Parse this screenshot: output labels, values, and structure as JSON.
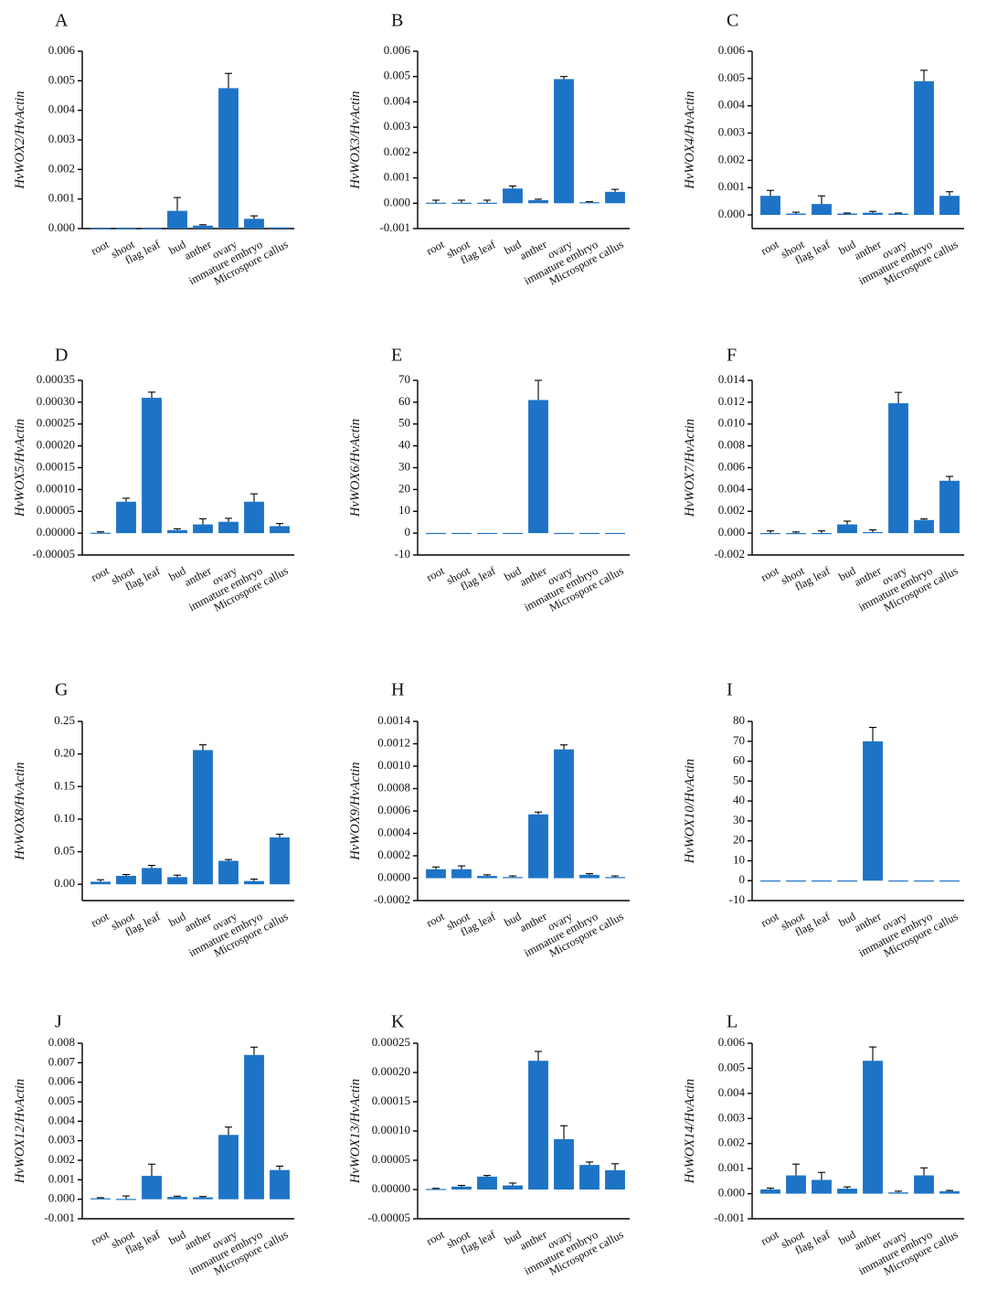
{
  "figure": {
    "categories": [
      "root",
      "shoot",
      "flag leaf",
      "bud",
      "anther",
      "ovary",
      "immature embryo",
      "Microspore callus"
    ],
    "bar_color": "#1d74c6"
  },
  "chart_data": [
    {
      "panel": "A",
      "type": "bar",
      "ylabel": "HvWOX2/HvActin",
      "ylim": [
        0,
        0.006
      ],
      "yticks": [
        "0.000",
        "0.001",
        "0.002",
        "0.003",
        "0.004",
        "0.005",
        "0.006"
      ],
      "categories": [
        "root",
        "shoot",
        "flag leaf",
        "bud",
        "anther",
        "ovary",
        "immature embryo",
        "Microspore callus"
      ],
      "values": [
        1e-05,
        1e-05,
        1e-05,
        0.0006,
        0.0001,
        0.00475,
        0.00033,
        4e-05
      ],
      "errors": [
        0,
        0,
        0,
        0.00045,
        3e-05,
        0.0005,
        0.0001,
        0
      ]
    },
    {
      "panel": "B",
      "type": "bar",
      "ylabel": "HvWOX3/HvActin",
      "ylim": [
        -0.001,
        0.006
      ],
      "yticks": [
        "-0.001",
        "0.000",
        "0.001",
        "0.002",
        "0.003",
        "0.004",
        "0.005",
        "0.006"
      ],
      "categories": [
        "root",
        "shoot",
        "flag leaf",
        "bud",
        "anther",
        "ovary",
        "immature embryo",
        "Microspore callus"
      ],
      "values": [
        2e-05,
        2e-05,
        2e-05,
        0.00058,
        0.00012,
        0.0049,
        4e-05,
        0.00045
      ],
      "errors": [
        0.0001,
        0.0001,
        0.0001,
        0.0001,
        4e-05,
        0.0001,
        2e-05,
        0.0001
      ]
    },
    {
      "panel": "C",
      "type": "bar",
      "ylabel": "HvWOX4/HvActin",
      "ylim": [
        -0.0005,
        0.006
      ],
      "yticks": [
        "0.000",
        "0.001",
        "0.002",
        "0.003",
        "0.004",
        "0.005",
        "0.006"
      ],
      "categories": [
        "root",
        "shoot",
        "flag leaf",
        "bud",
        "anther",
        "ovary",
        "immature embryo",
        "Microspore callus"
      ],
      "values": [
        0.0007,
        5e-05,
        0.0004,
        5e-05,
        8e-05,
        5e-05,
        0.0049,
        0.0007
      ],
      "errors": [
        0.0002,
        5e-05,
        0.0003,
        2e-05,
        5e-05,
        2e-05,
        0.0004,
        0.00015
      ]
    },
    {
      "panel": "D",
      "type": "bar",
      "ylabel": "HvWOX5/HvActin",
      "ylim": [
        -5e-05,
        0.00035
      ],
      "yticks": [
        "-0.00005",
        "0.00000",
        "0.00005",
        "0.00010",
        "0.00015",
        "0.00020",
        "0.00025",
        "0.00030",
        "0.00035"
      ],
      "categories": [
        "root",
        "shoot",
        "flag leaf",
        "bud",
        "anther",
        "ovary",
        "immature embryo",
        "Microspore callus"
      ],
      "values": [
        1e-06,
        7.2e-05,
        0.00031,
        7e-06,
        2e-05,
        2.6e-05,
        7.2e-05,
        1.6e-05
      ],
      "errors": [
        2e-06,
        8e-06,
        1.3e-05,
        3e-06,
        1.3e-05,
        8e-06,
        1.8e-05,
        6e-06
      ]
    },
    {
      "panel": "E",
      "type": "bar",
      "ylabel": "HvWOX6/HvActin",
      "ylim": [
        -10,
        70
      ],
      "yticks": [
        "-10",
        "0",
        "10",
        "20",
        "30",
        "40",
        "50",
        "60",
        "70"
      ],
      "categories": [
        "root",
        "shoot",
        "flag leaf",
        "bud",
        "anther",
        "ovary",
        "immature embryo",
        "Microspore callus"
      ],
      "values": [
        0.1,
        0.1,
        0.1,
        0.1,
        61,
        0.1,
        0.1,
        0.1
      ],
      "errors": [
        0,
        0,
        0,
        0,
        9,
        0,
        0,
        0
      ]
    },
    {
      "panel": "F",
      "type": "bar",
      "ylabel": "HvWOX7/HvActin",
      "ylim": [
        -0.002,
        0.014
      ],
      "yticks": [
        "-0.002",
        "0.000",
        "0.002",
        "0.004",
        "0.006",
        "0.008",
        "0.010",
        "0.012",
        "0.014"
      ],
      "categories": [
        "root",
        "shoot",
        "flag leaf",
        "bud",
        "anther",
        "ovary",
        "immature embryo",
        "Microspore callus"
      ],
      "values": [
        1e-05,
        1e-05,
        1e-05,
        0.0008,
        0.0001,
        0.0119,
        0.0012,
        0.0048
      ],
      "errors": [
        0.0002,
        0.0001,
        0.0002,
        0.0003,
        0.0002,
        0.001,
        0.0001,
        0.0004
      ]
    },
    {
      "panel": "G",
      "type": "bar",
      "ylabel": "HvWOX8/HvActin",
      "ylim": [
        -0.025,
        0.25
      ],
      "yticks": [
        "0.00",
        "0.05",
        "0.10",
        "0.15",
        "0.20",
        "0.25"
      ],
      "categories": [
        "root",
        "shoot",
        "flag leaf",
        "bud",
        "anther",
        "ovary",
        "immature embryo",
        "Microspore callus"
      ],
      "values": [
        0.004,
        0.013,
        0.025,
        0.011,
        0.206,
        0.036,
        0.005,
        0.072
      ],
      "errors": [
        0.003,
        0.002,
        0.004,
        0.003,
        0.008,
        0.002,
        0.003,
        0.005
      ]
    },
    {
      "panel": "H",
      "type": "bar",
      "ylabel": "HvWOX9/HvActin",
      "ylim": [
        -0.0002,
        0.0014
      ],
      "yticks": [
        "-0.0002",
        "0.0000",
        "0.0002",
        "0.0004",
        "0.0006",
        "0.0008",
        "0.0010",
        "0.0012",
        "0.0014"
      ],
      "categories": [
        "root",
        "shoot",
        "flag leaf",
        "bud",
        "anther",
        "ovary",
        "immature embryo",
        "Microspore callus"
      ],
      "values": [
        8e-05,
        8e-05,
        2e-05,
        1e-05,
        0.00057,
        0.00115,
        3e-05,
        1e-05
      ],
      "errors": [
        2e-05,
        3e-05,
        1e-05,
        1e-05,
        2e-05,
        4e-05,
        1e-05,
        1e-05
      ]
    },
    {
      "panel": "I",
      "type": "bar",
      "ylabel": "HvWOX10/HvActin",
      "ylim": [
        -10,
        80
      ],
      "yticks": [
        "-10",
        "0",
        "10",
        "20",
        "30",
        "40",
        "50",
        "60",
        "70",
        "80"
      ],
      "categories": [
        "root",
        "shoot",
        "flag leaf",
        "bud",
        "anther",
        "ovary",
        "immature embryo",
        "Microspore callus"
      ],
      "values": [
        0.1,
        0.1,
        0.1,
        0.1,
        70,
        0.1,
        0.1,
        0.1
      ],
      "errors": [
        0,
        0,
        0,
        0,
        7,
        0,
        0,
        0
      ]
    },
    {
      "panel": "J",
      "type": "bar",
      "ylabel": "HvWOX12/HvActin",
      "ylim": [
        -0.001,
        0.008
      ],
      "yticks": [
        "-0.001",
        "0.000",
        "0.001",
        "0.002",
        "0.003",
        "0.004",
        "0.005",
        "0.006",
        "0.007",
        "0.008"
      ],
      "categories": [
        "root",
        "shoot",
        "flag leaf",
        "bud",
        "anther",
        "ovary",
        "immature embryo",
        "Microspore callus"
      ],
      "values": [
        5e-05,
        2e-05,
        0.0012,
        0.00012,
        0.0001,
        0.0033,
        0.0074,
        0.0015
      ],
      "errors": [
        3e-05,
        0.00015,
        0.0006,
        4e-05,
        4e-05,
        0.0004,
        0.0004,
        0.0002
      ]
    },
    {
      "panel": "K",
      "type": "bar",
      "ylabel": "HvWOX13/HvActin",
      "ylim": [
        -5e-05,
        0.00025
      ],
      "yticks": [
        "-0.00005",
        "0.00000",
        "0.00005",
        "0.00010",
        "0.00015",
        "0.00020",
        "0.00025"
      ],
      "categories": [
        "root",
        "shoot",
        "flag leaf",
        "bud",
        "anther",
        "ovary",
        "immature embryo",
        "Microspore callus"
      ],
      "values": [
        1e-06,
        5e-06,
        2.2e-05,
        7e-06,
        0.00022,
        8.6e-05,
        4.2e-05,
        3.3e-05
      ],
      "errors": [
        1e-06,
        2e-06,
        2e-06,
        4e-06,
        1.6e-05,
        2.3e-05,
        5e-06,
        1.1e-05
      ]
    },
    {
      "panel": "L",
      "type": "bar",
      "ylabel": "HvWOX14/HvActin",
      "ylim": [
        -0.001,
        0.006
      ],
      "yticks": [
        "-0.001",
        "0.000",
        "0.001",
        "0.002",
        "0.003",
        "0.004",
        "0.005",
        "0.006"
      ],
      "categories": [
        "root",
        "shoot",
        "flag leaf",
        "bud",
        "anther",
        "ovary",
        "immature embryo",
        "Microspore callus"
      ],
      "values": [
        0.00017,
        0.00073,
        0.00055,
        0.0002,
        0.0053,
        5e-05,
        0.00073,
        0.0001
      ],
      "errors": [
        5e-05,
        0.00045,
        0.0003,
        7e-05,
        0.00055,
        5e-05,
        0.0003,
        3e-05
      ]
    }
  ]
}
